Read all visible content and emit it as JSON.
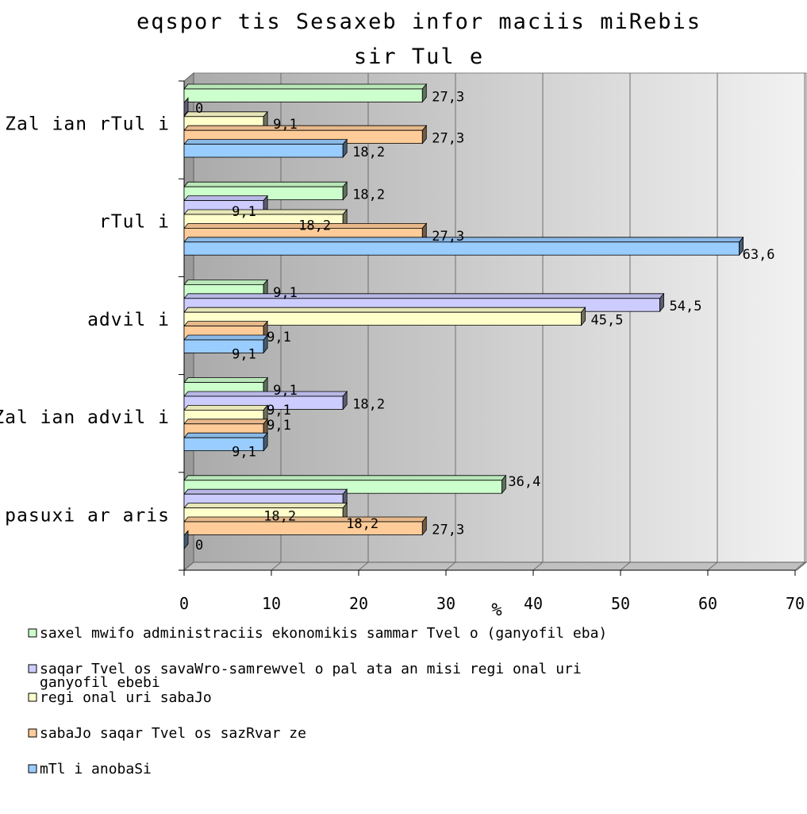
{
  "chart_data": {
    "type": "bar",
    "orientation": "horizontal",
    "title": "eqsportis Sesaxeb informaciis miRebis sirTule",
    "title_lines": [
      "eqspor tis Sesaxeb infor maciis miRebis",
      "sir Tul e"
    ],
    "xlabel": "%",
    "xlim": [
      0,
      70
    ],
    "xticks": [
      "0",
      "10",
      "20",
      "30",
      "40",
      "50",
      "60",
      "70"
    ],
    "grid": true,
    "legend_position": "bottom",
    "categories": [
      "Zal ian rTul i",
      "rTul i",
      "advil i",
      "Zal ian advil i",
      "pasuxi ar aris"
    ],
    "series": [
      {
        "name": "saxel mwifo administraciis ekonomikis sammarTvel o (ganyofil eba)",
        "name_lines": [
          "saxel mwifo administraciis ekonomikis sammar Tvel o (ganyofil eba)"
        ],
        "color": "#ccffcc",
        "values": [
          27.3,
          18.2,
          9.1,
          9.1,
          36.4
        ],
        "labels": [
          "27,3",
          "18,2",
          "9,1",
          "9,1",
          "36,4"
        ]
      },
      {
        "name": "saqarTvel os savaWro-samrewvel o pal ata an misi regional uri ganyofil ebebi",
        "name_lines": [
          "saqar Tvel os savaWro-samrewvel o pal ata an misi regi onal uri",
          "ganyofil ebebi"
        ],
        "color": "#ccccff",
        "values": [
          0,
          9.1,
          54.5,
          18.2,
          18.2
        ],
        "labels": [
          "0",
          "9,1",
          "54,5",
          "18,2",
          "18,2"
        ]
      },
      {
        "name": "regional uri sabaJo",
        "name_lines": [
          "regi onal uri sabaJo"
        ],
        "color": "#ffffcc",
        "values": [
          9.1,
          18.2,
          45.5,
          9.1,
          18.2
        ],
        "labels": [
          "9,1",
          "18,2",
          "45,5",
          "9,1",
          "18,2"
        ]
      },
      {
        "name": "sabaJo saqarTvel os sazRvarze",
        "name_lines": [
          "sabaJo saqar Tvel os sazRvar ze"
        ],
        "color": "#ffcc99",
        "values": [
          27.3,
          27.3,
          9.1,
          9.1,
          27.3
        ],
        "labels": [
          "27,3",
          "27,3",
          "9,1",
          "9,1",
          "27,3"
        ]
      },
      {
        "name": "mTl ianobaSi",
        "name_lines": [
          "mTl i anobaSi"
        ],
        "color": "#99ccff",
        "values": [
          18.2,
          63.6,
          9.1,
          9.1,
          0
        ],
        "labels": [
          "18,2",
          "63,6",
          "9,1",
          "9,1",
          "0"
        ]
      }
    ]
  }
}
